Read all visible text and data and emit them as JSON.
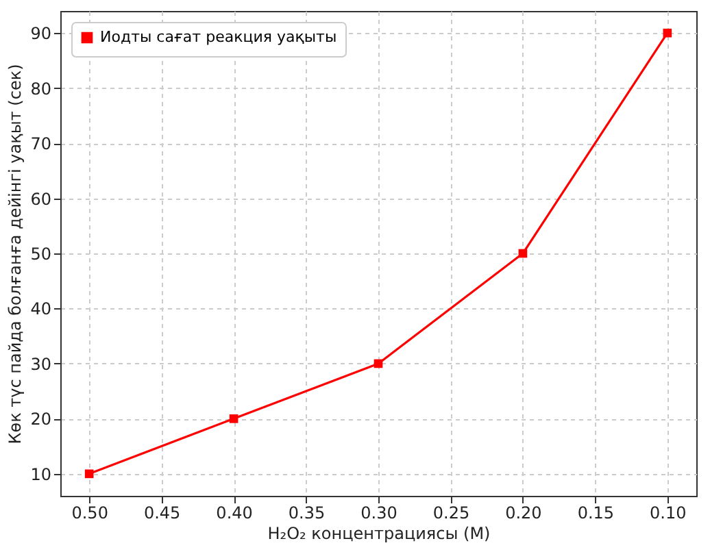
{
  "chart_data": {
    "type": "line",
    "xlabel": "H₂O₂ концентрациясы (M)",
    "ylabel": "Көк түс пайда болғанға дейінгі уақыт (сек)",
    "x": [
      0.5,
      0.4,
      0.3,
      0.2,
      0.1
    ],
    "series": [
      {
        "name": "Иодты сағат реакция уақыты",
        "color": "#ff0000",
        "values": [
          10,
          20,
          30,
          50,
          90
        ]
      }
    ],
    "xlim": [
      0.52,
      0.08
    ],
    "xticks": [
      {
        "value": 0.5,
        "label": "0.50"
      },
      {
        "value": 0.45,
        "label": "0.45"
      },
      {
        "value": 0.4,
        "label": "0.40"
      },
      {
        "value": 0.35,
        "label": "0.35"
      },
      {
        "value": 0.3,
        "label": "0.30"
      },
      {
        "value": 0.25,
        "label": "0.25"
      },
      {
        "value": 0.2,
        "label": "0.20"
      },
      {
        "value": 0.15,
        "label": "0.15"
      },
      {
        "value": 0.1,
        "label": "0.10"
      }
    ],
    "ylim": [
      6,
      94
    ],
    "yticks": [
      10,
      20,
      30,
      40,
      50,
      60,
      70,
      80,
      90
    ],
    "grid": true,
    "legend": "top left",
    "marker": "square",
    "line_style": "solid"
  }
}
